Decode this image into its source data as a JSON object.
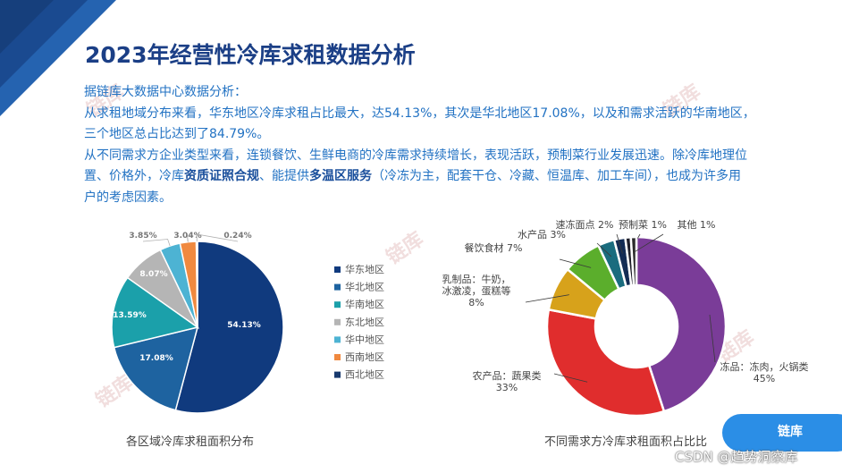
{
  "title": "2023年经营性冷库求租数据分析",
  "analysis": {
    "intro": "据链库大数据中心数据分析：",
    "line1": "从求租地域分布来看，华东地区冷库求租占比最大，达54.13%，其次是华北地区17.08%，以及和需求活跃的华南地区，",
    "line2": "三个地区总占比达到了84.79%。",
    "line3": "从不同需求方企业类型来看，连锁餐饮、生鲜电商的冷库需求持续增长，表现活跃，预制菜行业发展迅速。除冷库地理位",
    "line4_a": "置、价格外，冷库",
    "line4_b": "资质证照合规",
    "line4_c": "、能提供",
    "line4_d": "多温区服务",
    "line4_e": "（冷冻为主，配套干仓、冷藏、恒温库、加工车间），也成为许多用",
    "line5": "户的考虑因素。"
  },
  "watermark": "链库",
  "csdn": "CSDN @趋势洞察库",
  "brand": {
    "logo_text": "链库",
    "accent": "#2b8ee6"
  },
  "chart_data": [
    {
      "type": "pie",
      "caption": "各区域冷库求租面积分布",
      "labels": [
        "华东地区",
        "华北地区",
        "华南地区",
        "东北地区",
        "华中地区",
        "西南地区",
        "西北地区"
      ],
      "values": [
        54.13,
        17.08,
        13.59,
        8.07,
        3.85,
        3.04,
        0.24
      ],
      "value_labels": [
        "54.13%",
        "17.08%",
        "13.59%",
        "8.07%",
        "3.85%",
        "3.04%",
        "0.24%"
      ],
      "colors": [
        "#103a7e",
        "#1e63a0",
        "#1ba0aa",
        "#b5b5b5",
        "#4db3d3",
        "#f0893f",
        "#183a6e"
      ],
      "legend": "right"
    },
    {
      "type": "pie",
      "donut": true,
      "caption": "不同需求方冷库求租面积占比比",
      "labels": [
        "冻品：冻肉，火锅类",
        "农产品：蔬果类",
        "乳制品：牛奶，冰激凌，蛋糕等",
        "餐饮食材",
        "水产品",
        "速冻面点",
        "预制菜",
        "其他"
      ],
      "value_labels": [
        "45%",
        "33%",
        "8%",
        "7%",
        "3%",
        "2%",
        "1%",
        "1%"
      ],
      "values": [
        45,
        33,
        8,
        7,
        3,
        2,
        1,
        1
      ],
      "colors": [
        "#7a3c98",
        "#e02d2d",
        "#d7a21b",
        "#5bae2c",
        "#1a6c7e",
        "#132c54",
        "#1f1f2a",
        "#2a2a2a"
      ]
    }
  ]
}
